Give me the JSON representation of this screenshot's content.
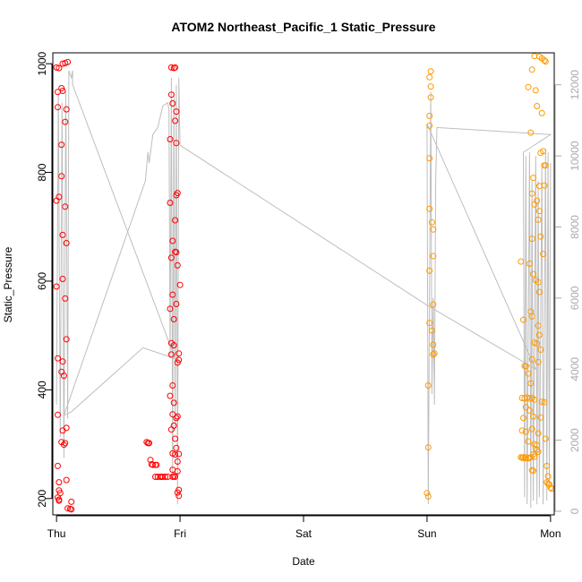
{
  "chart_data": {
    "type": "scatter",
    "title": "ATOM2 Northeast_Pacific_1 Static_Pressure",
    "xlabel": "Date",
    "ylabel": "Static_Pressure",
    "x_ticks": [
      "Thu",
      "Fri",
      "Sat",
      "Sun",
      "Mon"
    ],
    "xlim": [
      -0.03,
      4.03
    ],
    "ylim": [
      170,
      1020
    ],
    "y_ticks": [
      200,
      400,
      600,
      800,
      1000
    ],
    "y2lim": [
      -100,
      12900
    ],
    "y2_ticks": [
      0,
      2000,
      4000,
      6000,
      8000,
      10000,
      12000
    ],
    "grid": false,
    "colors": {
      "early": "#ff0000",
      "late": "#ff9900",
      "line": "#bebebe",
      "right_axis": "#aaaaaa"
    },
    "series": [
      {
        "color": "red",
        "points": [
          [
            0.0,
            993
          ],
          [
            0.02,
            992
          ],
          [
            0.05,
            1000
          ],
          [
            0.07,
            1001
          ],
          [
            0.09,
            1003
          ],
          [
            0.01,
            920
          ],
          [
            0.01,
            948
          ],
          [
            0.04,
            955
          ],
          [
            0.05,
            950
          ],
          [
            0.08,
            916
          ],
          [
            0.07,
            893
          ],
          [
            0.04,
            851
          ],
          [
            0.04,
            793
          ],
          [
            0.02,
            755
          ],
          [
            0.0,
            748
          ],
          [
            0.07,
            737
          ],
          [
            0.05,
            685
          ],
          [
            0.08,
            670
          ],
          [
            0.05,
            604
          ],
          [
            0.0,
            590
          ],
          [
            0.07,
            568
          ],
          [
            0.08,
            493
          ],
          [
            0.01,
            458
          ],
          [
            0.05,
            452
          ],
          [
            0.04,
            433
          ],
          [
            0.06,
            426
          ],
          [
            0.01,
            354
          ],
          [
            0.08,
            330
          ],
          [
            0.05,
            325
          ],
          [
            0.04,
            304
          ],
          [
            0.07,
            302
          ],
          [
            0.06,
            299
          ],
          [
            0.01,
            260
          ],
          [
            0.08,
            234
          ],
          [
            0.02,
            230
          ],
          [
            0.02,
            215
          ],
          [
            0.03,
            210
          ],
          [
            0.01,
            202
          ],
          [
            0.02,
            198
          ],
          [
            0.02,
            196
          ],
          [
            0.12,
            194
          ],
          [
            0.09,
            182
          ],
          [
            0.11,
            181
          ],
          [
            0.12,
            180
          ],
          [
            0.93,
            993
          ],
          [
            0.95,
            992
          ],
          [
            0.96,
            993
          ],
          [
            0.93,
            943
          ],
          [
            0.94,
            927
          ],
          [
            0.97,
            912
          ],
          [
            0.96,
            895
          ],
          [
            0.92,
            861
          ],
          [
            0.97,
            854
          ],
          [
            0.98,
            762
          ],
          [
            0.97,
            758
          ],
          [
            0.92,
            744
          ],
          [
            0.96,
            712
          ],
          [
            0.94,
            674
          ],
          [
            0.96,
            654
          ],
          [
            0.97,
            653
          ],
          [
            0.93,
            643
          ],
          [
            0.98,
            629
          ],
          [
            1.0,
            593
          ],
          [
            0.94,
            575
          ],
          [
            0.97,
            558
          ],
          [
            0.92,
            549
          ],
          [
            0.95,
            530
          ],
          [
            0.93,
            486
          ],
          [
            0.95,
            482
          ],
          [
            0.99,
            467
          ],
          [
            0.93,
            465
          ],
          [
            0.99,
            455
          ],
          [
            0.98,
            450
          ],
          [
            0.94,
            408
          ],
          [
            0.92,
            389
          ],
          [
            0.95,
            376
          ],
          [
            0.94,
            355
          ],
          [
            0.98,
            351
          ],
          [
            0.97,
            348
          ],
          [
            0.95,
            334
          ],
          [
            0.93,
            327
          ],
          [
            0.96,
            310
          ],
          [
            0.97,
            293
          ],
          [
            0.73,
            304
          ],
          [
            0.74,
            302
          ],
          [
            0.75,
            302
          ],
          [
            0.96,
            281
          ],
          [
            0.94,
            283
          ],
          [
            0.99,
            282
          ],
          [
            0.76,
            271
          ],
          [
            0.98,
            268
          ],
          [
            0.77,
            263
          ],
          [
            0.78,
            262
          ],
          [
            0.8,
            262
          ],
          [
            0.81,
            262
          ],
          [
            0.94,
            253
          ],
          [
            0.98,
            250
          ],
          [
            0.8,
            240
          ],
          [
            0.82,
            240
          ],
          [
            0.84,
            240
          ],
          [
            0.85,
            240
          ],
          [
            0.86,
            240
          ],
          [
            0.88,
            240
          ],
          [
            0.9,
            240
          ],
          [
            0.94,
            240
          ],
          [
            0.95,
            241
          ],
          [
            0.96,
            240
          ],
          [
            0.99,
            216
          ],
          [
            0.98,
            211
          ],
          [
            0.99,
            205
          ]
        ]
      },
      {
        "color": "orange",
        "points": [
          [
            3.03,
            986
          ],
          [
            3.02,
            975
          ],
          [
            3.03,
            958
          ],
          [
            3.03,
            938
          ],
          [
            3.02,
            904
          ],
          [
            3.02,
            886
          ],
          [
            3.02,
            826
          ],
          [
            3.02,
            733
          ],
          [
            3.04,
            708
          ],
          [
            3.05,
            695
          ],
          [
            3.05,
            646
          ],
          [
            3.02,
            619
          ],
          [
            3.05,
            557
          ],
          [
            3.02,
            523
          ],
          [
            3.04,
            509
          ],
          [
            3.05,
            483
          ],
          [
            3.06,
            467
          ],
          [
            3.05,
            465
          ],
          [
            3.01,
            408
          ],
          [
            3.01,
            294
          ],
          [
            3.0,
            210
          ],
          [
            3.01,
            204
          ],
          [
            3.87,
            1014
          ],
          [
            3.91,
            1013
          ],
          [
            3.93,
            1010
          ],
          [
            3.95,
            1006
          ],
          [
            3.96,
            1004
          ],
          [
            3.85,
            989
          ],
          [
            3.88,
            951
          ],
          [
            3.82,
            957
          ],
          [
            3.89,
            922
          ],
          [
            3.93,
            909
          ],
          [
            3.84,
            873
          ],
          [
            3.94,
            839
          ],
          [
            3.92,
            836
          ],
          [
            3.95,
            813
          ],
          [
            3.96,
            813
          ],
          [
            3.85,
            761
          ],
          [
            3.91,
            775
          ],
          [
            3.86,
            790
          ],
          [
            3.89,
            748
          ],
          [
            3.87,
            741
          ],
          [
            3.91,
            729
          ],
          [
            3.95,
            776
          ],
          [
            3.9,
            713
          ],
          [
            3.92,
            682
          ],
          [
            3.85,
            678
          ],
          [
            3.94,
            650
          ],
          [
            3.76,
            636
          ],
          [
            3.83,
            632
          ],
          [
            3.86,
            613
          ],
          [
            3.88,
            602
          ],
          [
            3.9,
            598
          ],
          [
            3.91,
            580
          ],
          [
            3.84,
            544
          ],
          [
            3.85,
            535
          ],
          [
            3.78,
            529
          ],
          [
            3.9,
            518
          ],
          [
            3.91,
            501
          ],
          [
            3.87,
            487
          ],
          [
            3.89,
            485
          ],
          [
            3.92,
            474
          ],
          [
            3.85,
            456
          ],
          [
            3.9,
            451
          ],
          [
            3.79,
            444
          ],
          [
            3.8,
            443
          ],
          [
            3.82,
            430
          ],
          [
            3.84,
            412
          ],
          [
            3.77,
            385
          ],
          [
            3.79,
            384
          ],
          [
            3.81,
            386
          ],
          [
            3.83,
            384
          ],
          [
            3.85,
            385
          ],
          [
            3.87,
            382
          ],
          [
            3.93,
            378
          ],
          [
            3.95,
            377
          ],
          [
            3.8,
            368
          ],
          [
            3.83,
            362
          ],
          [
            3.78,
            348
          ],
          [
            3.86,
            351
          ],
          [
            3.92,
            349
          ],
          [
            3.77,
            325
          ],
          [
            3.8,
            323
          ],
          [
            3.85,
            328
          ],
          [
            3.9,
            320
          ],
          [
            3.96,
            310
          ],
          [
            3.82,
            305
          ],
          [
            3.87,
            300
          ],
          [
            3.89,
            298
          ],
          [
            3.76,
            276
          ],
          [
            3.77,
            275
          ],
          [
            3.78,
            276
          ],
          [
            3.79,
            274
          ],
          [
            3.8,
            276
          ],
          [
            3.82,
            274
          ],
          [
            3.83,
            275
          ],
          [
            3.84,
            276
          ],
          [
            3.86,
            281
          ],
          [
            3.87,
            277
          ],
          [
            3.89,
            290
          ],
          [
            3.9,
            286
          ],
          [
            3.97,
            260
          ],
          [
            3.85,
            252
          ],
          [
            3.86,
            251
          ],
          [
            3.98,
            241
          ],
          [
            3.97,
            230
          ],
          [
            3.98,
            227
          ],
          [
            3.99,
            226
          ],
          [
            4.0,
            220
          ],
          [
            4.01,
            218
          ]
        ]
      }
    ],
    "line_series": {
      "axis": "right",
      "points": [
        [
          0.0,
          3000
        ],
        [
          0.015,
          11800
        ],
        [
          0.03,
          2100
        ],
        [
          0.045,
          11500
        ],
        [
          0.06,
          1500
        ],
        [
          0.075,
          11800
        ],
        [
          0.09,
          2600
        ],
        [
          0.1,
          12400
        ],
        [
          0.12,
          12200
        ],
        [
          0.13,
          12400
        ],
        [
          0.13,
          12000
        ],
        [
          0.96,
          4300
        ],
        [
          0.7,
          4600
        ],
        [
          0.12,
          2800
        ],
        [
          0.06,
          2700
        ],
        [
          0.72,
          9300
        ],
        [
          0.74,
          10100
        ],
        [
          0.75,
          9800
        ],
        [
          0.78,
          10600
        ],
        [
          0.82,
          10800
        ],
        [
          0.86,
          11400
        ],
        [
          0.9,
          11500
        ],
        [
          0.91,
          11300
        ],
        [
          0.92,
          4300
        ],
        [
          0.93,
          12200
        ],
        [
          0.94,
          900
        ],
        [
          0.95,
          11800
        ],
        [
          0.96,
          2300
        ],
        [
          0.97,
          12000
        ],
        [
          0.98,
          200
        ],
        [
          0.99,
          12200
        ],
        [
          1.0,
          10300
        ],
        [
          3.0,
          5800
        ],
        [
          3.88,
          4000
        ],
        [
          3.0,
          10900
        ],
        [
          3.01,
          200
        ],
        [
          3.03,
          11800
        ],
        [
          3.04,
          3300
        ],
        [
          3.05,
          6000
        ],
        [
          3.06,
          3000
        ],
        [
          3.07,
          9300
        ],
        [
          3.08,
          10800
        ],
        [
          4.0,
          10600
        ],
        [
          3.78,
          10100
        ],
        [
          3.79,
          400
        ],
        [
          3.8,
          10000
        ],
        [
          3.81,
          200
        ],
        [
          3.83,
          10100
        ],
        [
          3.84,
          100
        ],
        [
          3.85,
          9300
        ],
        [
          3.86,
          300
        ],
        [
          3.88,
          10000
        ],
        [
          3.89,
          200
        ],
        [
          3.9,
          9300
        ],
        [
          3.91,
          400
        ],
        [
          3.93,
          9800
        ],
        [
          3.94,
          200
        ],
        [
          3.96,
          10200
        ],
        [
          3.97,
          300
        ],
        [
          3.98,
          10100
        ],
        [
          3.99,
          800
        ],
        [
          4.0,
          9800
        ]
      ]
    }
  }
}
